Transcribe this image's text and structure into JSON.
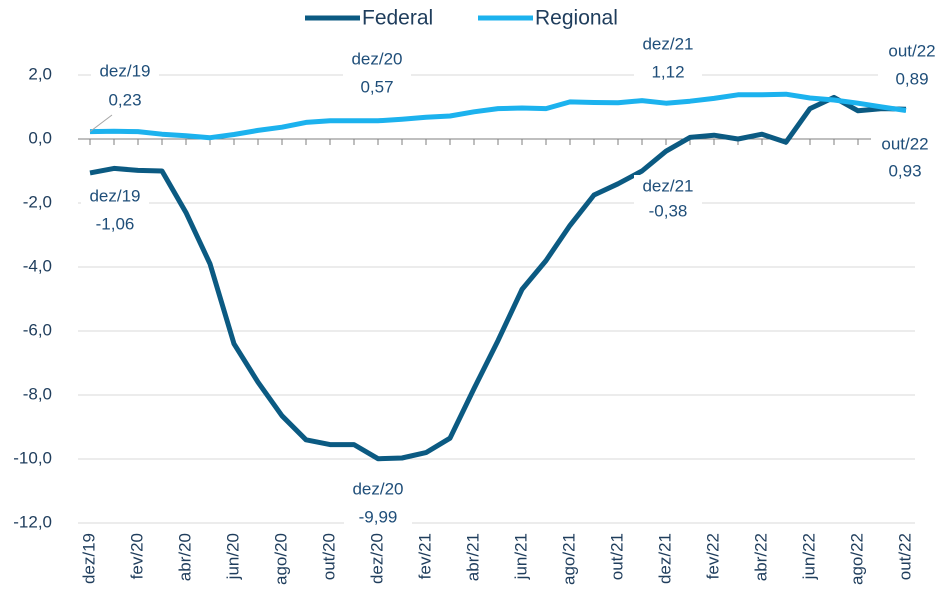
{
  "chart_data": {
    "type": "line",
    "categories": [
      "dez/19",
      null,
      "fev/20",
      null,
      "abr/20",
      null,
      "jun/20",
      null,
      "ago/20",
      null,
      "out/20",
      null,
      "dez/20",
      null,
      "fev/21",
      null,
      "abr/21",
      null,
      "jun/21",
      null,
      "ago/21",
      null,
      "out/21",
      null,
      "dez/21",
      null,
      "fev/22",
      null,
      "abr/22",
      null,
      "jun/22",
      null,
      "ago/22",
      null,
      "out/22"
    ],
    "series": [
      {
        "name": "Federal",
        "color": "#0b5a82",
        "values": [
          -1.06,
          -0.92,
          -0.98,
          -1.0,
          -2.3,
          -3.9,
          -6.4,
          -7.6,
          -8.65,
          -9.4,
          -9.55,
          -9.55,
          -9.99,
          -9.97,
          -9.8,
          -9.35,
          -7.8,
          -6.3,
          -4.7,
          -3.8,
          -2.7,
          -1.75,
          -1.4,
          -1.0,
          -0.38,
          0.05,
          0.12,
          0.0,
          0.15,
          -0.1,
          0.95,
          1.3,
          0.88,
          0.95,
          0.93
        ],
        "value_labels": [
          "-1,06",
          null,
          null,
          null,
          null,
          null,
          null,
          null,
          null,
          null,
          null,
          null,
          "-9,99",
          null,
          null,
          null,
          null,
          null,
          null,
          null,
          null,
          null,
          null,
          null,
          "-0,38",
          null,
          null,
          null,
          null,
          null,
          null,
          null,
          null,
          null,
          "0,93"
        ]
      },
      {
        "name": "Regional",
        "color": "#1cb2ee",
        "values": [
          0.23,
          0.24,
          0.23,
          0.15,
          0.1,
          0.04,
          0.14,
          0.27,
          0.37,
          0.52,
          0.57,
          0.57,
          0.57,
          0.62,
          0.68,
          0.72,
          0.85,
          0.95,
          0.97,
          0.95,
          1.16,
          1.14,
          1.13,
          1.2,
          1.12,
          1.18,
          1.27,
          1.38,
          1.38,
          1.4,
          1.28,
          1.22,
          1.12,
          1.0,
          0.89
        ],
        "value_labels": [
          "0,23",
          null,
          null,
          null,
          null,
          null,
          null,
          null,
          null,
          null,
          null,
          null,
          "0,57",
          null,
          null,
          null,
          null,
          null,
          null,
          null,
          null,
          null,
          null,
          null,
          "1,12",
          null,
          null,
          null,
          null,
          null,
          null,
          null,
          null,
          null,
          "0,89"
        ]
      }
    ],
    "ylim": [
      -12,
      2
    ],
    "yticks": [
      {
        "value": -12,
        "label": "-12,0"
      },
      {
        "value": -10,
        "label": "-10,0"
      },
      {
        "value": -8,
        "label": "-8,0"
      },
      {
        "value": -6,
        "label": "-6,0"
      },
      {
        "value": -4,
        "label": "-4,0"
      },
      {
        "value": -2,
        "label": "-2,0"
      },
      {
        "value": 0,
        "label": "0,0"
      },
      {
        "value": 2,
        "label": "2,0"
      }
    ],
    "grid": true,
    "legend": "top"
  }
}
